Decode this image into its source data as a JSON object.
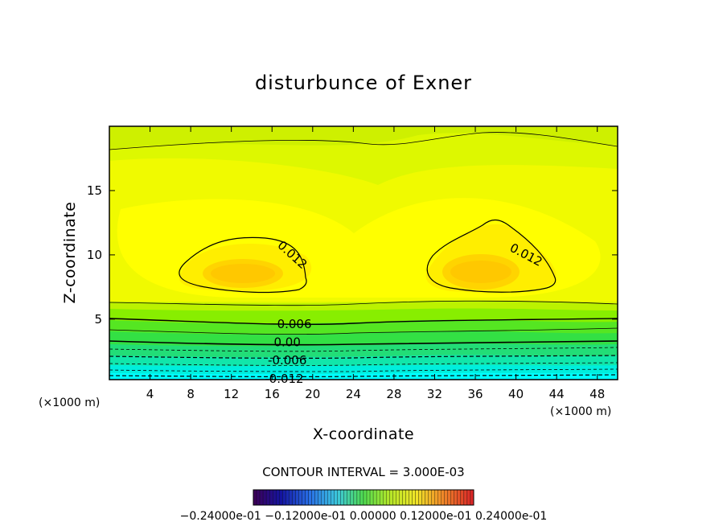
{
  "chart_data": {
    "type": "contour",
    "title": "disturbunce of Exner",
    "xlabel": "X-coordinate",
    "ylabel": "Z-coordinate",
    "x_unit": "(×1000 m)",
    "y_unit": "(×1000 m)",
    "xlim": [
      0,
      50
    ],
    "ylim": [
      0.3,
      20
    ],
    "x_ticks": [
      4,
      8,
      12,
      16,
      20,
      24,
      28,
      32,
      36,
      40,
      44,
      48
    ],
    "y_ticks": [
      5,
      10,
      15
    ],
    "contour_interval_text": "CONTOUR INTERVAL = 3.000E-03",
    "contour_labels": [
      {
        "text": "0.012",
        "x": 18,
        "z": 10
      },
      {
        "text": "0.012",
        "x": 41,
        "z": 10
      },
      {
        "text": "0.006",
        "x": 18.2,
        "z": 4.6
      },
      {
        "text": "0.00",
        "x": 17.5,
        "z": 3.2
      },
      {
        "text": "-0.006",
        "x": 17.5,
        "z": 1.8
      },
      {
        "text": "-0.012",
        "x": 17.2,
        "z": 0.35
      }
    ],
    "colorbar_range": [
      -0.024,
      0.024
    ],
    "colorbar_labels_text": "−0.24000e-01  −0.12000e-01  0.00000  0.12000e-01  0.24000e-01",
    "colors": {
      "cyan": "#00ffee",
      "green": "#33ee33",
      "yellowgreen": "#aaf000",
      "yellow": "#ffff00",
      "orange": "#ffcc00"
    }
  }
}
